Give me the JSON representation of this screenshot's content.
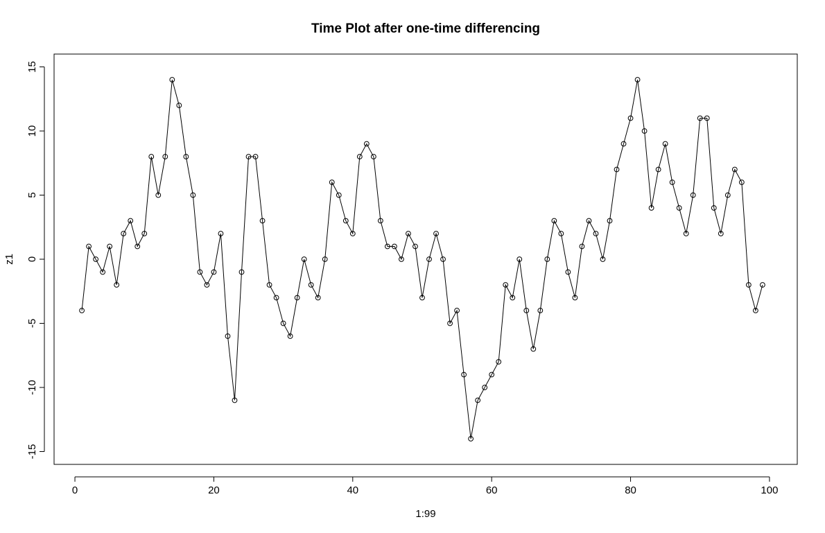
{
  "chart_data": {
    "type": "line",
    "markers": "open-circle",
    "line_color": "#000000",
    "title": "Time Plot after one-time differencing",
    "xlabel": "1:99",
    "ylabel": "z1",
    "xlim": [
      -3,
      104
    ],
    "ylim": [
      -16,
      16
    ],
    "xticks": [
      0,
      20,
      40,
      60,
      80,
      100
    ],
    "yticks": [
      -15,
      -10,
      -5,
      0,
      5,
      10,
      15
    ],
    "x": [
      1,
      2,
      3,
      4,
      5,
      6,
      7,
      8,
      9,
      10,
      11,
      12,
      13,
      14,
      15,
      16,
      17,
      18,
      19,
      20,
      21,
      22,
      23,
      24,
      25,
      26,
      27,
      28,
      29,
      30,
      31,
      32,
      33,
      34,
      35,
      36,
      37,
      38,
      39,
      40,
      41,
      42,
      43,
      44,
      45,
      46,
      47,
      48,
      49,
      50,
      51,
      52,
      53,
      54,
      55,
      56,
      57,
      58,
      59,
      60,
      61,
      62,
      63,
      64,
      65,
      66,
      67,
      68,
      69,
      70,
      71,
      72,
      73,
      74,
      75,
      76,
      77,
      78,
      79,
      80,
      81,
      82,
      83,
      84,
      85,
      86,
      87,
      88,
      89,
      90,
      91,
      92,
      93,
      94,
      95,
      96,
      97,
      98,
      99
    ],
    "values": [
      -4,
      1,
      0,
      -1,
      1,
      -2,
      2,
      3,
      1,
      2,
      8,
      5,
      8,
      14,
      12,
      8,
      5,
      -1,
      -2,
      -1,
      2,
      -6,
      -11,
      -1,
      8,
      8,
      3,
      -2,
      -3,
      -5,
      -6,
      -3,
      0,
      -2,
      -3,
      0,
      6,
      5,
      3,
      2,
      8,
      9,
      8,
      3,
      1,
      1,
      0,
      2,
      1,
      -3,
      0,
      2,
      0,
      -5,
      -4,
      -9,
      -14,
      -11,
      -10,
      -9,
      -8,
      -2,
      -3,
      0,
      -4,
      -7,
      -4,
      0,
      3,
      2,
      -1,
      -3,
      1,
      3,
      2,
      0,
      3,
      7,
      9,
      11,
      14,
      10,
      4,
      7,
      9,
      6,
      4,
      2,
      5,
      11,
      11,
      4,
      2,
      5,
      7,
      6,
      -2,
      -4,
      -2
    ]
  }
}
